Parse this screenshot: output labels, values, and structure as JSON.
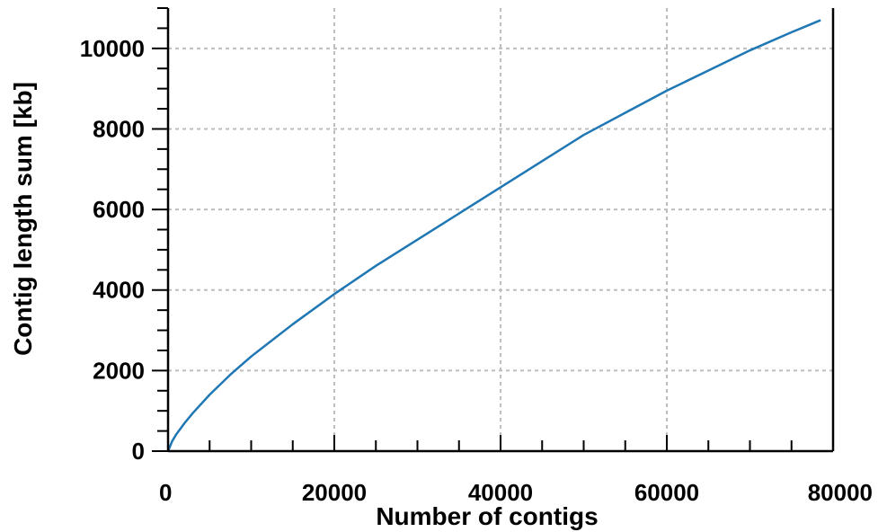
{
  "chart_data": {
    "type": "line",
    "title": "",
    "xlabel": "Number of contigs",
    "ylabel": "Contig length sum [kb]",
    "xlim": [
      0,
      80000
    ],
    "ylim": [
      0,
      11000
    ],
    "x_ticks": [
      0,
      20000,
      40000,
      60000,
      80000
    ],
    "x_tick_labels": [
      "0",
      "20000",
      "40000",
      "60000",
      "80000"
    ],
    "y_ticks": [
      0,
      2000,
      4000,
      6000,
      8000,
      10000
    ],
    "y_tick_labels": [
      "0",
      "2000",
      "4000",
      "6000",
      "8000",
      "10000"
    ],
    "x_minor_step": 5000,
    "y_minor_step": 500,
    "grid": true,
    "grid_style": "dashed",
    "legend": "none",
    "series": [
      {
        "color": "#1f77b4",
        "x": [
          0,
          500,
          1000,
          2000,
          3000,
          5000,
          7500,
          10000,
          15000,
          20000,
          25000,
          30000,
          35000,
          40000,
          45000,
          50000,
          55000,
          60000,
          65000,
          70000,
          75000,
          78500
        ],
        "y": [
          0,
          250,
          420,
          700,
          950,
          1400,
          1900,
          2350,
          3150,
          3900,
          4600,
          5250,
          5900,
          6550,
          7200,
          7850,
          8400,
          8950,
          9450,
          9950,
          10400,
          10700
        ]
      }
    ]
  }
}
